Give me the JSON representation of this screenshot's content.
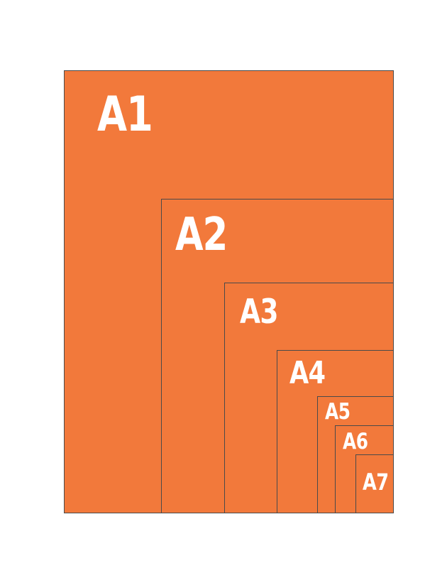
{
  "diagram": {
    "description": "Nested A-series paper size comparison diagram",
    "papers": [
      {
        "id": "a1",
        "label": "A1"
      },
      {
        "id": "a2",
        "label": "A2"
      },
      {
        "id": "a3",
        "label": "A3"
      },
      {
        "id": "a4",
        "label": "A4"
      },
      {
        "id": "a5",
        "label": "A5"
      },
      {
        "id": "a6",
        "label": "A6"
      },
      {
        "id": "a7",
        "label": "A7"
      }
    ],
    "colors": {
      "background": "#FFFFFF",
      "paper_fill": "#F2793B",
      "paper_border": "#4A4A4A",
      "label_text": "#FFFFFF"
    }
  }
}
